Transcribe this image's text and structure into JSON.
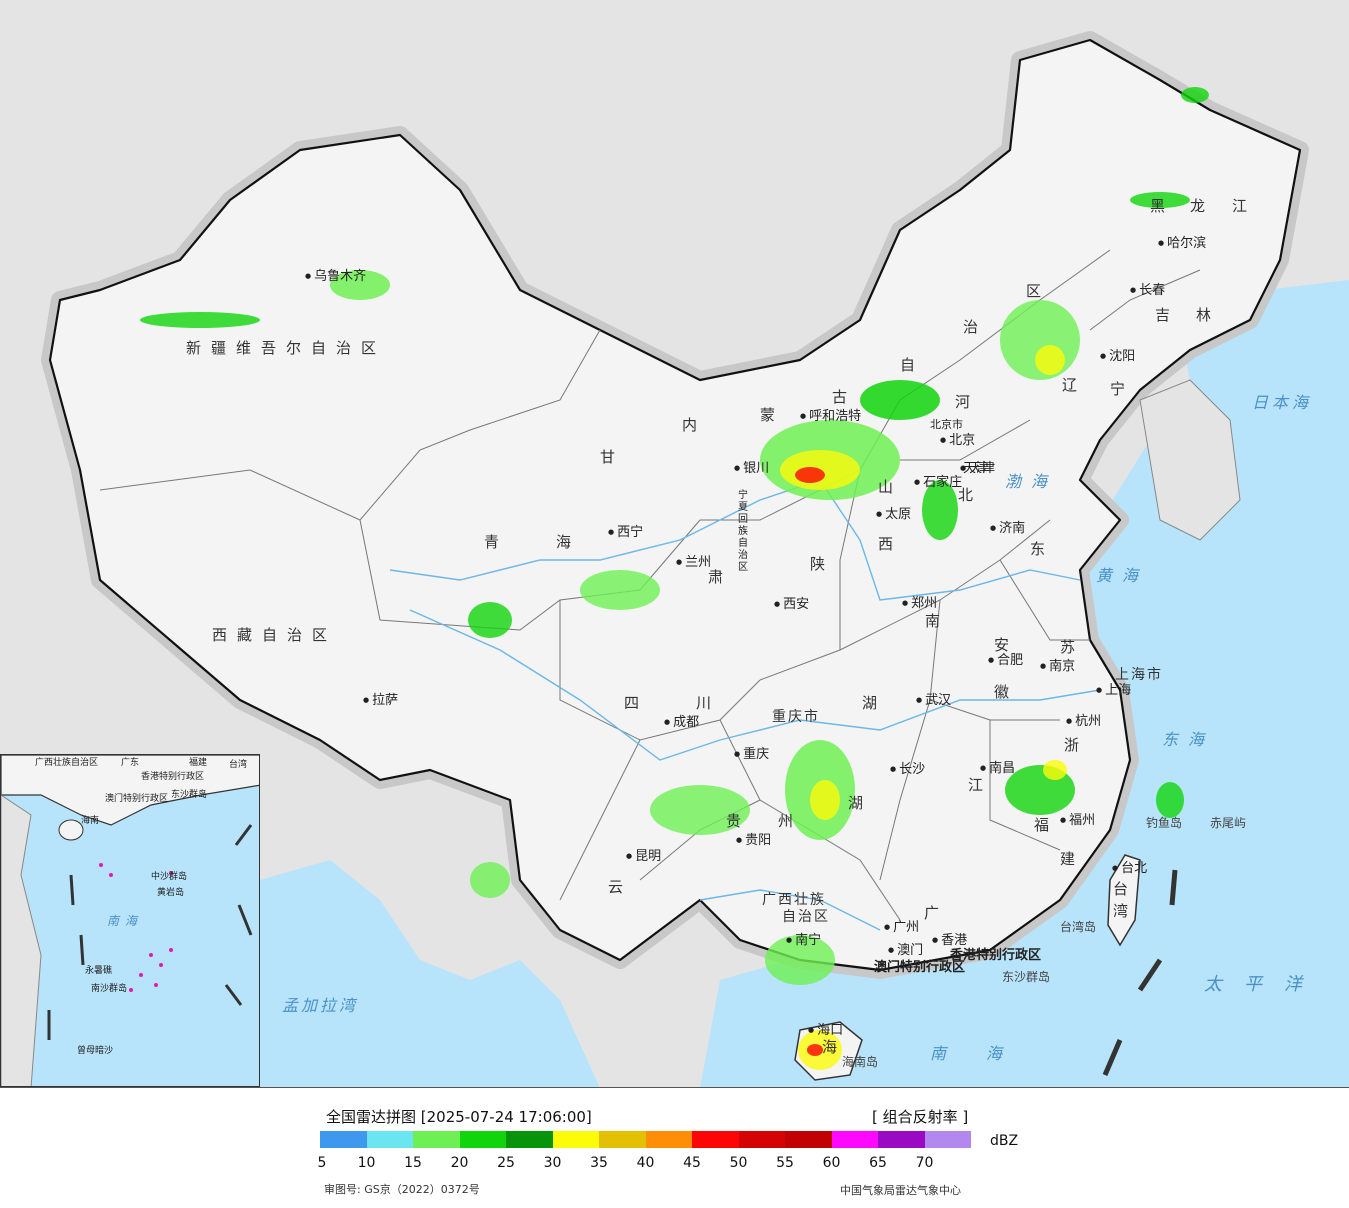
{
  "map": {
    "colors": {
      "sea": "#b7e4fa",
      "land": "#f4f4f4",
      "outside": "#e4e4e4",
      "border": "#111111",
      "halo": "#c8c8c8",
      "river": "#6bb7e8"
    },
    "province_labels": [
      "新疆维吾尔自治区",
      "西藏自治区",
      "青",
      "海",
      "甘",
      "肃",
      "内",
      "蒙",
      "古",
      "自",
      "治",
      "区",
      "黑",
      "龙",
      "江",
      "吉",
      "林",
      "辽",
      "宁",
      "河",
      "北",
      "山",
      "西",
      "东",
      "陕",
      "南",
      "四",
      "川",
      "重庆市",
      "湖",
      "贵",
      "州",
      "云",
      "广西壮族",
      "自治区",
      "广",
      "湖",
      "安",
      "徽",
      "江",
      "苏",
      "上海市",
      "浙",
      "福",
      "建",
      "台",
      "湾",
      "海",
      "宁夏回族自治区",
      "天津",
      "北京市",
      "香港特别行政区",
      "澳门特别行政区"
    ],
    "city_labels": [
      "乌鲁木齐",
      "拉萨",
      "西宁",
      "兰州",
      "银川",
      "呼和浩特",
      "北京",
      "天津",
      "石家庄",
      "太原",
      "济南",
      "西安",
      "郑州",
      "合肥",
      "南京",
      "上海",
      "杭州",
      "武汉",
      "成都",
      "重庆",
      "长沙",
      "南昌",
      "福州",
      "贵阳",
      "昆明",
      "南宁",
      "广州",
      "香港",
      "澳门",
      "海口",
      "台北",
      "哈尔滨",
      "长春",
      "沈阳"
    ],
    "sea_labels": [
      "渤海",
      "黄海",
      "东海",
      "南海",
      "日本海",
      "太平洋",
      "孟加拉湾"
    ],
    "island_labels": [
      "钓鱼岛",
      "赤尾屿",
      "台湾岛",
      "东沙群岛",
      "海南岛"
    ]
  },
  "inset": {
    "labels": [
      "广西壮族自治区",
      "广东",
      "福建",
      "台湾",
      "香港特别行政区",
      "澳门特别行政区",
      "海南",
      "东沙群岛",
      "中沙群岛",
      "黄岩岛",
      "南海",
      "永暑礁",
      "南沙群岛",
      "曾母暗沙"
    ]
  },
  "legend": {
    "title": "全国雷达拼图 [2025-07-24 17:06:00]",
    "product": "[ 组合反射率 ]",
    "unit": "dBZ",
    "colors": [
      "#3d98ee",
      "#6be6f0",
      "#6ef054",
      "#12d40d",
      "#07940a",
      "#fbfb0a",
      "#e4c005",
      "#fe8e08",
      "#fe0505",
      "#d50404",
      "#c20202",
      "#fe09fe",
      "#9a0ac2",
      "#b287ee"
    ],
    "ticks": [
      "5",
      "10",
      "15",
      "20",
      "25",
      "30",
      "35",
      "40",
      "45",
      "50",
      "55",
      "60",
      "65",
      "70"
    ],
    "approval": "审图号: GS京（2022）0372号",
    "credit": "中国气象局雷达气象中心"
  }
}
